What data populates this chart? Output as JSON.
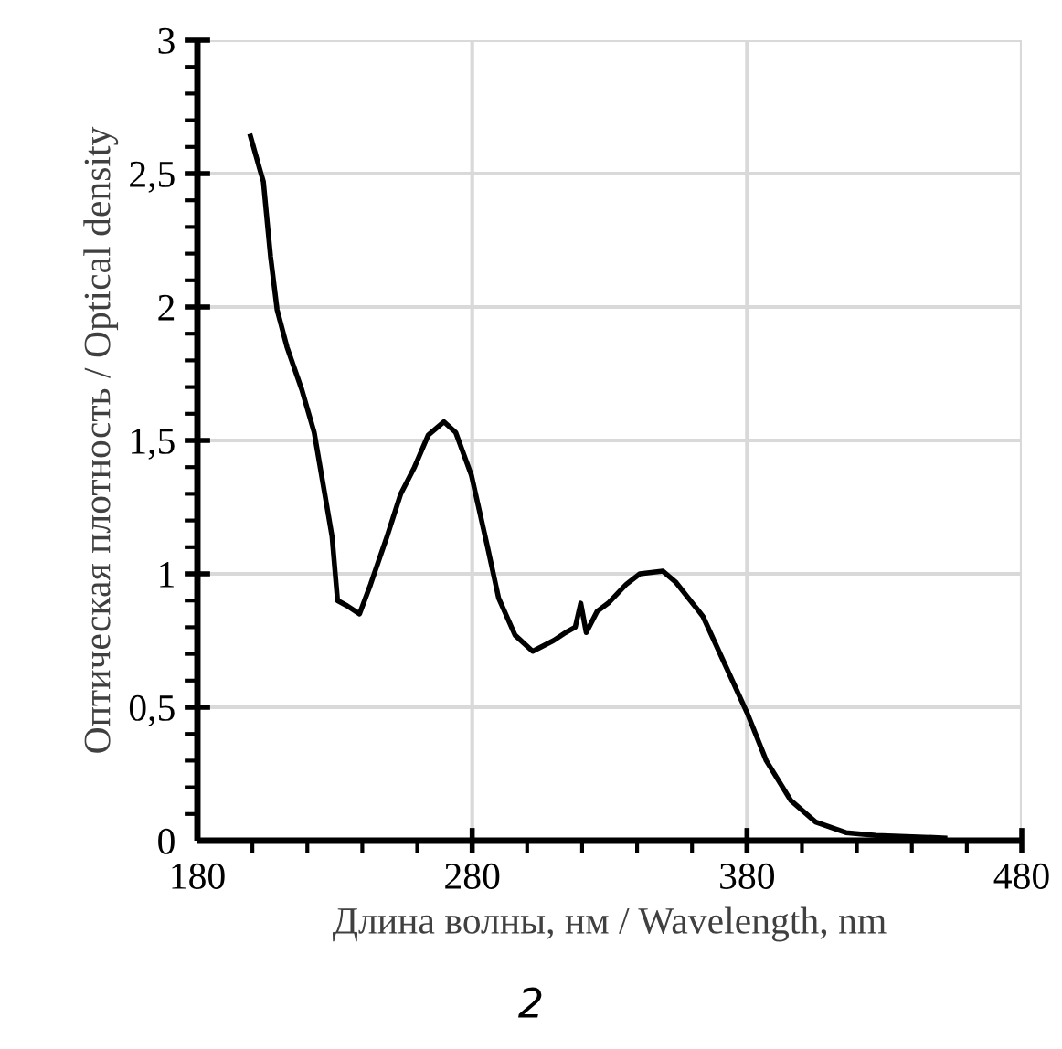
{
  "chart_data": {
    "type": "line",
    "xlabel": "Длина волны, нм / Wavelength, nm",
    "ylabel": "Оптическая плотность / Optical density",
    "annotations": [
      "2"
    ],
    "xlim": [
      180,
      480
    ],
    "ylim": [
      0,
      3
    ],
    "xticks": [
      180,
      280,
      380,
      480
    ],
    "yticks": [
      0,
      {
        "value": 0.5,
        "label": "0,5"
      },
      1,
      {
        "value": 1.5,
        "label": "1,5"
      },
      2,
      {
        "value": 2.5,
        "label": "2,5"
      },
      3
    ],
    "grid": true,
    "marker": "none",
    "line_style": "solid",
    "series": [
      {
        "color": "#000000",
        "x": [
          199.3,
          202.6,
          204,
          206.6,
          209,
          212.6,
          218,
          222.5,
          226,
          229,
          231,
          234.5,
          239,
          243,
          249,
          254,
          259,
          264,
          269.7,
          274,
          279.7,
          285.6,
          289.6,
          295.6,
          302,
          309.6,
          314,
          317.5,
          319.5,
          321.5,
          325.5,
          329.5,
          336,
          341,
          349.4,
          354,
          364,
          372,
          380,
          387,
          396,
          405,
          416,
          427,
          452
        ],
        "values": [
          2.64,
          2.52,
          2.47,
          2.19,
          1.99,
          1.85,
          1.69,
          1.53,
          1.32,
          1.14,
          0.9,
          0.88,
          0.85,
          0.96,
          1.14,
          1.3,
          1.4,
          1.52,
          1.57,
          1.53,
          1.37,
          1.1,
          0.91,
          0.77,
          0.71,
          0.75,
          0.78,
          0.8,
          0.89,
          0.78,
          0.86,
          0.89,
          0.96,
          1.0,
          1.01,
          0.97,
          0.84,
          0.66,
          0.48,
          0.3,
          0.15,
          0.07,
          0.03,
          0.02,
          0.01
        ]
      }
    ]
  }
}
